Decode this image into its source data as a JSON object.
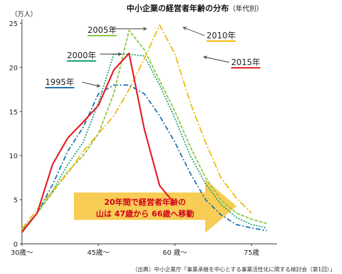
{
  "chart_data": {
    "type": "line",
    "title": "中小企業の経営者年齢の分布",
    "subtitle": "（年代別）",
    "y_unit": "（万人）",
    "xlim": [
      30,
      80
    ],
    "ylim": [
      0,
      25
    ],
    "x_ticks": [
      {
        "value": 30,
        "label": "30歳〜"
      },
      {
        "value": 45,
        "label": "45歳〜"
      },
      {
        "value": 60,
        "label": "60 歳〜"
      },
      {
        "value": 75,
        "label": "75歳"
      }
    ],
    "y_ticks": [
      0,
      5,
      10,
      15,
      20,
      25
    ],
    "series": [
      {
        "name": "1995年",
        "color": "#1a6faf",
        "dash": "7 3 2 3",
        "points": [
          [
            30,
            1.5
          ],
          [
            33,
            3.5
          ],
          [
            36,
            6.7
          ],
          [
            39,
            10.5
          ],
          [
            42,
            13.2
          ],
          [
            45,
            17
          ],
          [
            48,
            18
          ],
          [
            51,
            18
          ],
          [
            54,
            17
          ],
          [
            57,
            14.5
          ],
          [
            60,
            11.5
          ],
          [
            63,
            8
          ],
          [
            66,
            5
          ],
          [
            69,
            3.3
          ],
          [
            72,
            2.2
          ],
          [
            75,
            1.8
          ],
          [
            78,
            1.5
          ]
        ]
      },
      {
        "name": "2000年",
        "color": "#13a06b",
        "dash": "2 2",
        "points": [
          [
            30,
            1.5
          ],
          [
            33,
            3.5
          ],
          [
            36,
            6
          ],
          [
            39,
            9
          ],
          [
            42,
            11.5
          ],
          [
            45,
            16
          ],
          [
            48,
            21.5
          ],
          [
            51,
            21.5
          ],
          [
            54,
            21.3
          ],
          [
            57,
            18
          ],
          [
            60,
            14.2
          ],
          [
            63,
            10
          ],
          [
            66,
            6.8
          ],
          [
            69,
            4.5
          ],
          [
            72,
            3
          ],
          [
            75,
            2.2
          ],
          [
            78,
            1.8
          ]
        ]
      },
      {
        "name": "2005年",
        "color": "#8dc63f",
        "dash": "5 2",
        "points": [
          [
            30,
            1.5
          ],
          [
            33,
            3.5
          ],
          [
            36,
            5.8
          ],
          [
            39,
            8.2
          ],
          [
            42,
            10
          ],
          [
            45,
            12.5
          ],
          [
            48,
            17
          ],
          [
            51,
            24.2
          ],
          [
            54,
            22
          ],
          [
            57,
            18.5
          ],
          [
            60,
            15
          ],
          [
            63,
            11
          ],
          [
            66,
            7.5
          ],
          [
            69,
            5
          ],
          [
            72,
            3.5
          ],
          [
            75,
            2.8
          ],
          [
            78,
            2.3
          ]
        ]
      },
      {
        "name": "2010年",
        "color": "#f2b705",
        "dash": "10 3 2 3",
        "points": [
          [
            30,
            1.7
          ],
          [
            33,
            3.9
          ],
          [
            36,
            6
          ],
          [
            39,
            8
          ],
          [
            42,
            10.5
          ],
          [
            45,
            12.5
          ],
          [
            48,
            14.5
          ],
          [
            51,
            17.5
          ],
          [
            54,
            21
          ],
          [
            57,
            24.8
          ],
          [
            60,
            21.5
          ],
          [
            63,
            16
          ],
          [
            66,
            11.5
          ],
          [
            69,
            7.5
          ],
          [
            72,
            5.2
          ],
          [
            75,
            3.5
          ]
        ]
      },
      {
        "name": "2015年",
        "color": "#e31e24",
        "dash": "",
        "points": [
          [
            30,
            1.3
          ],
          [
            33,
            3.5
          ],
          [
            36,
            9
          ],
          [
            39,
            12
          ],
          [
            42,
            13.8
          ],
          [
            45,
            15.7
          ],
          [
            48,
            19.7
          ],
          [
            51,
            21.6
          ],
          [
            54,
            13
          ],
          [
            57,
            6.6
          ],
          [
            60,
            4.5
          ]
        ]
      }
    ],
    "legend": [
      {
        "label": "2005年",
        "series": "2005年",
        "pos": "top-center"
      },
      {
        "label": "2010年",
        "series": "2010年",
        "pos": "top-right"
      },
      {
        "label": "2000年",
        "series": "2000年",
        "pos": "upper-left"
      },
      {
        "label": "2015年",
        "series": "2015年",
        "pos": "right"
      },
      {
        "label": "1995年",
        "series": "1995年",
        "pos": "left"
      }
    ],
    "annotation": {
      "line1": "20年間で経営者年齢の",
      "line2": "山は 47歳から 66歳へ移動"
    }
  },
  "source": "（出典）中小企業庁「事業承継を中心とする事業活性化に関する検討会（第1回）」"
}
